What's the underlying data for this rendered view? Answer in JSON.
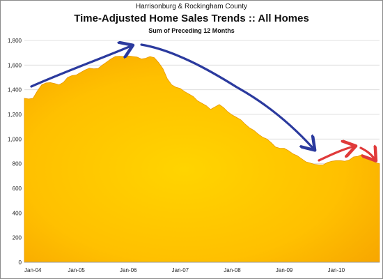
{
  "header": {
    "supertitle": "Harrisonburg & Rockingham County",
    "title": "Time-Adjusted Home Sales Trends  ::  All Homes",
    "subtitle": "Sum of Preceding 12 Months"
  },
  "chart_data": {
    "type": "area",
    "title": "Time-Adjusted Home Sales Trends  ::  All Homes",
    "subtitle": "Sum of Preceding 12 Months",
    "xlabel": "",
    "ylabel": "",
    "ylim": [
      0,
      1800
    ],
    "yticks": [
      0,
      200,
      400,
      600,
      800,
      1000,
      1200,
      1400,
      1600,
      1800
    ],
    "ytick_labels": [
      "0",
      "200",
      "400",
      "600",
      "800",
      "1,000",
      "1,200",
      "1,400",
      "1,600",
      "1,800"
    ],
    "xtick_labels": [
      "Jan-04",
      "Jan-05",
      "Jan-06",
      "Jan-07",
      "Jan-08",
      "Jan-09",
      "Jan-10"
    ],
    "grid": true,
    "x_unit": "months since Jan-04",
    "series": [
      {
        "name": "",
        "x": [
          0,
          1,
          2,
          3,
          4,
          5,
          6,
          7,
          8,
          9,
          10,
          11,
          12,
          13,
          14,
          15,
          16,
          17,
          18,
          19,
          20,
          21,
          22,
          23,
          24,
          25,
          26,
          27,
          28,
          29,
          30,
          31,
          32,
          33,
          34,
          35,
          36,
          37,
          38,
          39,
          40,
          41,
          42,
          43,
          44,
          45,
          46,
          47,
          48,
          49,
          50,
          51,
          52,
          53,
          54,
          55,
          56,
          57,
          58,
          59,
          60,
          61,
          62,
          63,
          64,
          65,
          66,
          67,
          68,
          69,
          70,
          71,
          72,
          73,
          74,
          75,
          76,
          77,
          78,
          79,
          80,
          81,
          82
        ],
        "values": [
          1330,
          1325,
          1330,
          1390,
          1440,
          1455,
          1458,
          1450,
          1440,
          1460,
          1500,
          1515,
          1520,
          1540,
          1560,
          1575,
          1570,
          1572,
          1600,
          1625,
          1650,
          1670,
          1672,
          1670,
          1675,
          1670,
          1665,
          1650,
          1655,
          1670,
          1660,
          1620,
          1570,
          1490,
          1440,
          1420,
          1410,
          1385,
          1365,
          1345,
          1310,
          1290,
          1270,
          1240,
          1260,
          1280,
          1255,
          1220,
          1195,
          1175,
          1155,
          1120,
          1090,
          1070,
          1040,
          1015,
          1000,
          970,
          935,
          925,
          925,
          905,
          880,
          865,
          840,
          815,
          805,
          795,
          790,
          790,
          810,
          820,
          825,
          825,
          820,
          830,
          855,
          860,
          875,
          850,
          830,
          810,
          800
        ]
      }
    ],
    "colors": {
      "area_top": "#ffc400",
      "area_bottom": "#f9a800",
      "edge": "#e89800",
      "grid": "#d7d7d7",
      "arrow_blue": "#2b3a9e",
      "arrow_red": "#e03a3a"
    },
    "annotations": [
      "blue-arrow-up",
      "blue-arrow-down",
      "red-arrow-up",
      "red-arrow-down"
    ]
  }
}
